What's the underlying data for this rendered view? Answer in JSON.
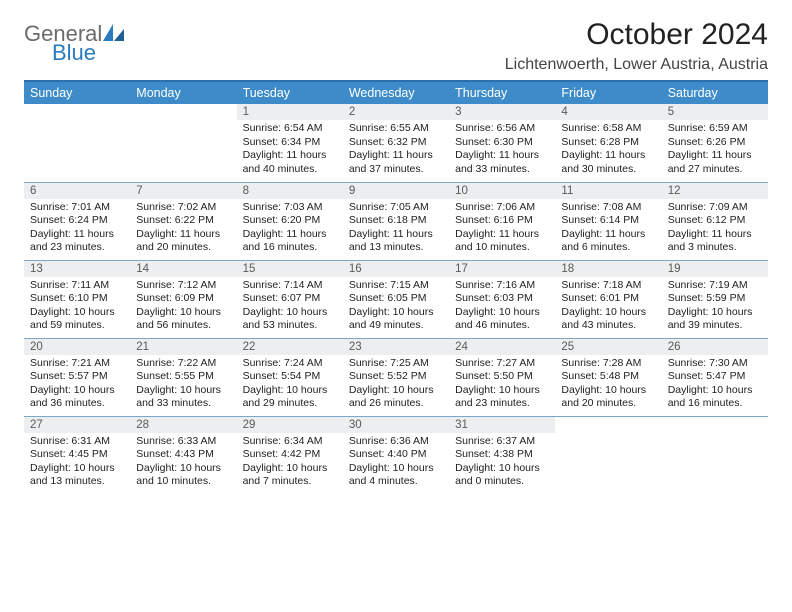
{
  "logo": {
    "word1": "General",
    "word2": "Blue"
  },
  "title": "October 2024",
  "location": "Lichtenwoerth, Lower Austria, Austria",
  "colors": {
    "header_bg": "#3d8cc9",
    "header_text": "#ffffff",
    "daynum_bg": "#eceeef",
    "row_border": "#7da7c7",
    "rule": "#2b6fab",
    "logo_gray": "#6b6b6b",
    "logo_blue": "#2b7bbf"
  },
  "weekdays": [
    "Sunday",
    "Monday",
    "Tuesday",
    "Wednesday",
    "Thursday",
    "Friday",
    "Saturday"
  ],
  "weeks": [
    [
      {
        "n": "",
        "sr": "",
        "ss": "",
        "dl": ""
      },
      {
        "n": "",
        "sr": "",
        "ss": "",
        "dl": ""
      },
      {
        "n": "1",
        "sr": "Sunrise: 6:54 AM",
        "ss": "Sunset: 6:34 PM",
        "dl": "Daylight: 11 hours and 40 minutes."
      },
      {
        "n": "2",
        "sr": "Sunrise: 6:55 AM",
        "ss": "Sunset: 6:32 PM",
        "dl": "Daylight: 11 hours and 37 minutes."
      },
      {
        "n": "3",
        "sr": "Sunrise: 6:56 AM",
        "ss": "Sunset: 6:30 PM",
        "dl": "Daylight: 11 hours and 33 minutes."
      },
      {
        "n": "4",
        "sr": "Sunrise: 6:58 AM",
        "ss": "Sunset: 6:28 PM",
        "dl": "Daylight: 11 hours and 30 minutes."
      },
      {
        "n": "5",
        "sr": "Sunrise: 6:59 AM",
        "ss": "Sunset: 6:26 PM",
        "dl": "Daylight: 11 hours and 27 minutes."
      }
    ],
    [
      {
        "n": "6",
        "sr": "Sunrise: 7:01 AM",
        "ss": "Sunset: 6:24 PM",
        "dl": "Daylight: 11 hours and 23 minutes."
      },
      {
        "n": "7",
        "sr": "Sunrise: 7:02 AM",
        "ss": "Sunset: 6:22 PM",
        "dl": "Daylight: 11 hours and 20 minutes."
      },
      {
        "n": "8",
        "sr": "Sunrise: 7:03 AM",
        "ss": "Sunset: 6:20 PM",
        "dl": "Daylight: 11 hours and 16 minutes."
      },
      {
        "n": "9",
        "sr": "Sunrise: 7:05 AM",
        "ss": "Sunset: 6:18 PM",
        "dl": "Daylight: 11 hours and 13 minutes."
      },
      {
        "n": "10",
        "sr": "Sunrise: 7:06 AM",
        "ss": "Sunset: 6:16 PM",
        "dl": "Daylight: 11 hours and 10 minutes."
      },
      {
        "n": "11",
        "sr": "Sunrise: 7:08 AM",
        "ss": "Sunset: 6:14 PM",
        "dl": "Daylight: 11 hours and 6 minutes."
      },
      {
        "n": "12",
        "sr": "Sunrise: 7:09 AM",
        "ss": "Sunset: 6:12 PM",
        "dl": "Daylight: 11 hours and 3 minutes."
      }
    ],
    [
      {
        "n": "13",
        "sr": "Sunrise: 7:11 AM",
        "ss": "Sunset: 6:10 PM",
        "dl": "Daylight: 10 hours and 59 minutes."
      },
      {
        "n": "14",
        "sr": "Sunrise: 7:12 AM",
        "ss": "Sunset: 6:09 PM",
        "dl": "Daylight: 10 hours and 56 minutes."
      },
      {
        "n": "15",
        "sr": "Sunrise: 7:14 AM",
        "ss": "Sunset: 6:07 PM",
        "dl": "Daylight: 10 hours and 53 minutes."
      },
      {
        "n": "16",
        "sr": "Sunrise: 7:15 AM",
        "ss": "Sunset: 6:05 PM",
        "dl": "Daylight: 10 hours and 49 minutes."
      },
      {
        "n": "17",
        "sr": "Sunrise: 7:16 AM",
        "ss": "Sunset: 6:03 PM",
        "dl": "Daylight: 10 hours and 46 minutes."
      },
      {
        "n": "18",
        "sr": "Sunrise: 7:18 AM",
        "ss": "Sunset: 6:01 PM",
        "dl": "Daylight: 10 hours and 43 minutes."
      },
      {
        "n": "19",
        "sr": "Sunrise: 7:19 AM",
        "ss": "Sunset: 5:59 PM",
        "dl": "Daylight: 10 hours and 39 minutes."
      }
    ],
    [
      {
        "n": "20",
        "sr": "Sunrise: 7:21 AM",
        "ss": "Sunset: 5:57 PM",
        "dl": "Daylight: 10 hours and 36 minutes."
      },
      {
        "n": "21",
        "sr": "Sunrise: 7:22 AM",
        "ss": "Sunset: 5:55 PM",
        "dl": "Daylight: 10 hours and 33 minutes."
      },
      {
        "n": "22",
        "sr": "Sunrise: 7:24 AM",
        "ss": "Sunset: 5:54 PM",
        "dl": "Daylight: 10 hours and 29 minutes."
      },
      {
        "n": "23",
        "sr": "Sunrise: 7:25 AM",
        "ss": "Sunset: 5:52 PM",
        "dl": "Daylight: 10 hours and 26 minutes."
      },
      {
        "n": "24",
        "sr": "Sunrise: 7:27 AM",
        "ss": "Sunset: 5:50 PM",
        "dl": "Daylight: 10 hours and 23 minutes."
      },
      {
        "n": "25",
        "sr": "Sunrise: 7:28 AM",
        "ss": "Sunset: 5:48 PM",
        "dl": "Daylight: 10 hours and 20 minutes."
      },
      {
        "n": "26",
        "sr": "Sunrise: 7:30 AM",
        "ss": "Sunset: 5:47 PM",
        "dl": "Daylight: 10 hours and 16 minutes."
      }
    ],
    [
      {
        "n": "27",
        "sr": "Sunrise: 6:31 AM",
        "ss": "Sunset: 4:45 PM",
        "dl": "Daylight: 10 hours and 13 minutes."
      },
      {
        "n": "28",
        "sr": "Sunrise: 6:33 AM",
        "ss": "Sunset: 4:43 PM",
        "dl": "Daylight: 10 hours and 10 minutes."
      },
      {
        "n": "29",
        "sr": "Sunrise: 6:34 AM",
        "ss": "Sunset: 4:42 PM",
        "dl": "Daylight: 10 hours and 7 minutes."
      },
      {
        "n": "30",
        "sr": "Sunrise: 6:36 AM",
        "ss": "Sunset: 4:40 PM",
        "dl": "Daylight: 10 hours and 4 minutes."
      },
      {
        "n": "31",
        "sr": "Sunrise: 6:37 AM",
        "ss": "Sunset: 4:38 PM",
        "dl": "Daylight: 10 hours and 0 minutes."
      },
      {
        "n": "",
        "sr": "",
        "ss": "",
        "dl": ""
      },
      {
        "n": "",
        "sr": "",
        "ss": "",
        "dl": ""
      }
    ]
  ]
}
